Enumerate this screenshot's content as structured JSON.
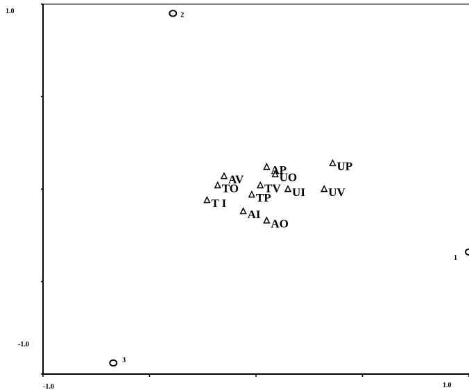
{
  "chart_data": {
    "type": "scatter",
    "title": "",
    "xlabel": "",
    "ylabel": "",
    "xlim": [
      -1.0,
      1.0
    ],
    "ylim": [
      -1.0,
      1.0
    ],
    "x_tick_labels": [
      "-1.0",
      "1.0"
    ],
    "y_tick_labels": [
      "1.0",
      "-1.0"
    ],
    "grid": false,
    "series": [
      {
        "marker": "circle",
        "points": [
          {
            "label": "1",
            "x": 1.0,
            "y": -0.34
          },
          {
            "label": "2",
            "x": -0.39,
            "y": 0.95
          },
          {
            "label": "3",
            "x": -0.67,
            "y": -0.94
          }
        ]
      },
      {
        "marker": "triangle",
        "points": [
          {
            "label": "AP",
            "x": 0.05,
            "y": 0.12
          },
          {
            "label": "UP",
            "x": 0.36,
            "y": 0.14
          },
          {
            "label": "AV",
            "x": -0.15,
            "y": 0.07
          },
          {
            "label": "UO",
            "x": 0.09,
            "y": 0.08
          },
          {
            "label": "TO",
            "x": -0.18,
            "y": 0.02
          },
          {
            "label": "TV",
            "x": 0.02,
            "y": 0.02
          },
          {
            "label": "UI",
            "x": 0.15,
            "y": 0.0
          },
          {
            "label": "UV",
            "x": 0.32,
            "y": 0.0
          },
          {
            "label": "TP",
            "x": -0.02,
            "y": -0.03
          },
          {
            "label": "T I",
            "x": -0.23,
            "y": -0.06
          },
          {
            "label": "AI",
            "x": -0.06,
            "y": -0.12
          },
          {
            "label": "AO",
            "x": 0.05,
            "y": -0.17
          }
        ]
      }
    ]
  }
}
